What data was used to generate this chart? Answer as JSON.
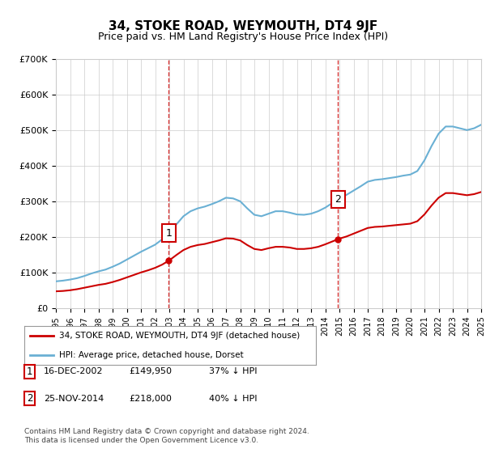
{
  "title": "34, STOKE ROAD, WEYMOUTH, DT4 9JF",
  "subtitle": "Price paid vs. HM Land Registry's House Price Index (HPI)",
  "legend_line1": "34, STOKE ROAD, WEYMOUTH, DT4 9JF (detached house)",
  "legend_line2": "HPI: Average price, detached house, Dorset",
  "annotation1_label": "1",
  "annotation1_date": "16-DEC-2002",
  "annotation1_price": "£149,950",
  "annotation1_hpi": "37% ↓ HPI",
  "annotation2_label": "2",
  "annotation2_date": "25-NOV-2014",
  "annotation2_price": "£218,000",
  "annotation2_hpi": "40% ↓ HPI",
  "footer": "Contains HM Land Registry data © Crown copyright and database right 2024.\nThis data is licensed under the Open Government Licence v3.0.",
  "hpi_color": "#6ab0d4",
  "price_color": "#cc0000",
  "dashed_line_color": "#cc0000",
  "background_color": "#ffffff",
  "ylim": [
    0,
    700000
  ],
  "yticks": [
    0,
    100000,
    200000,
    300000,
    400000,
    500000,
    600000,
    700000
  ],
  "ytick_labels": [
    "£0",
    "£100K",
    "£200K",
    "£300K",
    "£400K",
    "£500K",
    "£600K",
    "£700K"
  ],
  "x_start_year": 1995,
  "x_end_year": 2025,
  "sale1_year": 2002.96,
  "sale1_price": 149950,
  "sale2_year": 2014.9,
  "sale2_price": 218000,
  "hpi_years": [
    1995,
    1995.5,
    1996,
    1996.5,
    1997,
    1997.5,
    1998,
    1998.5,
    1999,
    1999.5,
    2000,
    2000.5,
    2001,
    2001.5,
    2002,
    2002.5,
    2003,
    2003.5,
    2004,
    2004.5,
    2005,
    2005.5,
    2006,
    2006.5,
    2007,
    2007.5,
    2008,
    2008.5,
    2009,
    2009.5,
    2010,
    2010.5,
    2011,
    2011.5,
    2012,
    2012.5,
    2013,
    2013.5,
    2014,
    2014.5,
    2015,
    2015.5,
    2016,
    2016.5,
    2017,
    2017.5,
    2018,
    2018.5,
    2019,
    2019.5,
    2020,
    2020.5,
    2021,
    2021.5,
    2022,
    2022.5,
    2023,
    2023.5,
    2024,
    2024.5,
    2025
  ],
  "hpi_values": [
    75000,
    77000,
    80000,
    84000,
    90000,
    97000,
    103000,
    108000,
    116000,
    125000,
    136000,
    147000,
    158000,
    168000,
    178000,
    193000,
    212000,
    235000,
    258000,
    272000,
    280000,
    285000,
    292000,
    300000,
    310000,
    308000,
    300000,
    280000,
    262000,
    258000,
    265000,
    272000,
    272000,
    268000,
    263000,
    262000,
    265000,
    272000,
    282000,
    295000,
    308000,
    318000,
    330000,
    342000,
    355000,
    360000,
    362000,
    365000,
    368000,
    372000,
    375000,
    385000,
    415000,
    455000,
    490000,
    510000,
    510000,
    505000,
    500000,
    505000,
    515000
  ],
  "price_years": [
    1995,
    1995.5,
    1996,
    1996.5,
    1997,
    1997.5,
    1998,
    1998.5,
    1999,
    1999.5,
    2000,
    2000.5,
    2001,
    2001.5,
    2002,
    2002.5,
    2003,
    2003.5,
    2004,
    2004.5,
    2005,
    2005.5,
    2006,
    2006.5,
    2007,
    2007.5,
    2008,
    2008.5,
    2009,
    2009.5,
    2010,
    2010.5,
    2011,
    2011.5,
    2012,
    2012.5,
    2013,
    2013.5,
    2014,
    2014.5,
    2015,
    2015.5,
    2016,
    2016.5,
    2017,
    2017.5,
    2018,
    2018.5,
    2019,
    2019.5,
    2020,
    2020.5,
    2021,
    2021.5,
    2022,
    2022.5,
    2023,
    2023.5,
    2024,
    2024.5,
    2025
  ],
  "price_values": [
    47000,
    48000,
    50000,
    53000,
    57000,
    61000,
    65000,
    68000,
    73000,
    79000,
    86000,
    93000,
    100000,
    106000,
    113000,
    122000,
    134000,
    149000,
    163000,
    172000,
    177000,
    180000,
    185000,
    190000,
    196000,
    195000,
    190000,
    177000,
    166000,
    163000,
    168000,
    172000,
    172000,
    170000,
    166000,
    166000,
    168000,
    172000,
    179000,
    187000,
    195000,
    201000,
    209000,
    217000,
    225000,
    228000,
    229000,
    231000,
    233000,
    235000,
    237000,
    244000,
    263000,
    288000,
    310000,
    323000,
    323000,
    320000,
    317000,
    320000,
    326000
  ]
}
